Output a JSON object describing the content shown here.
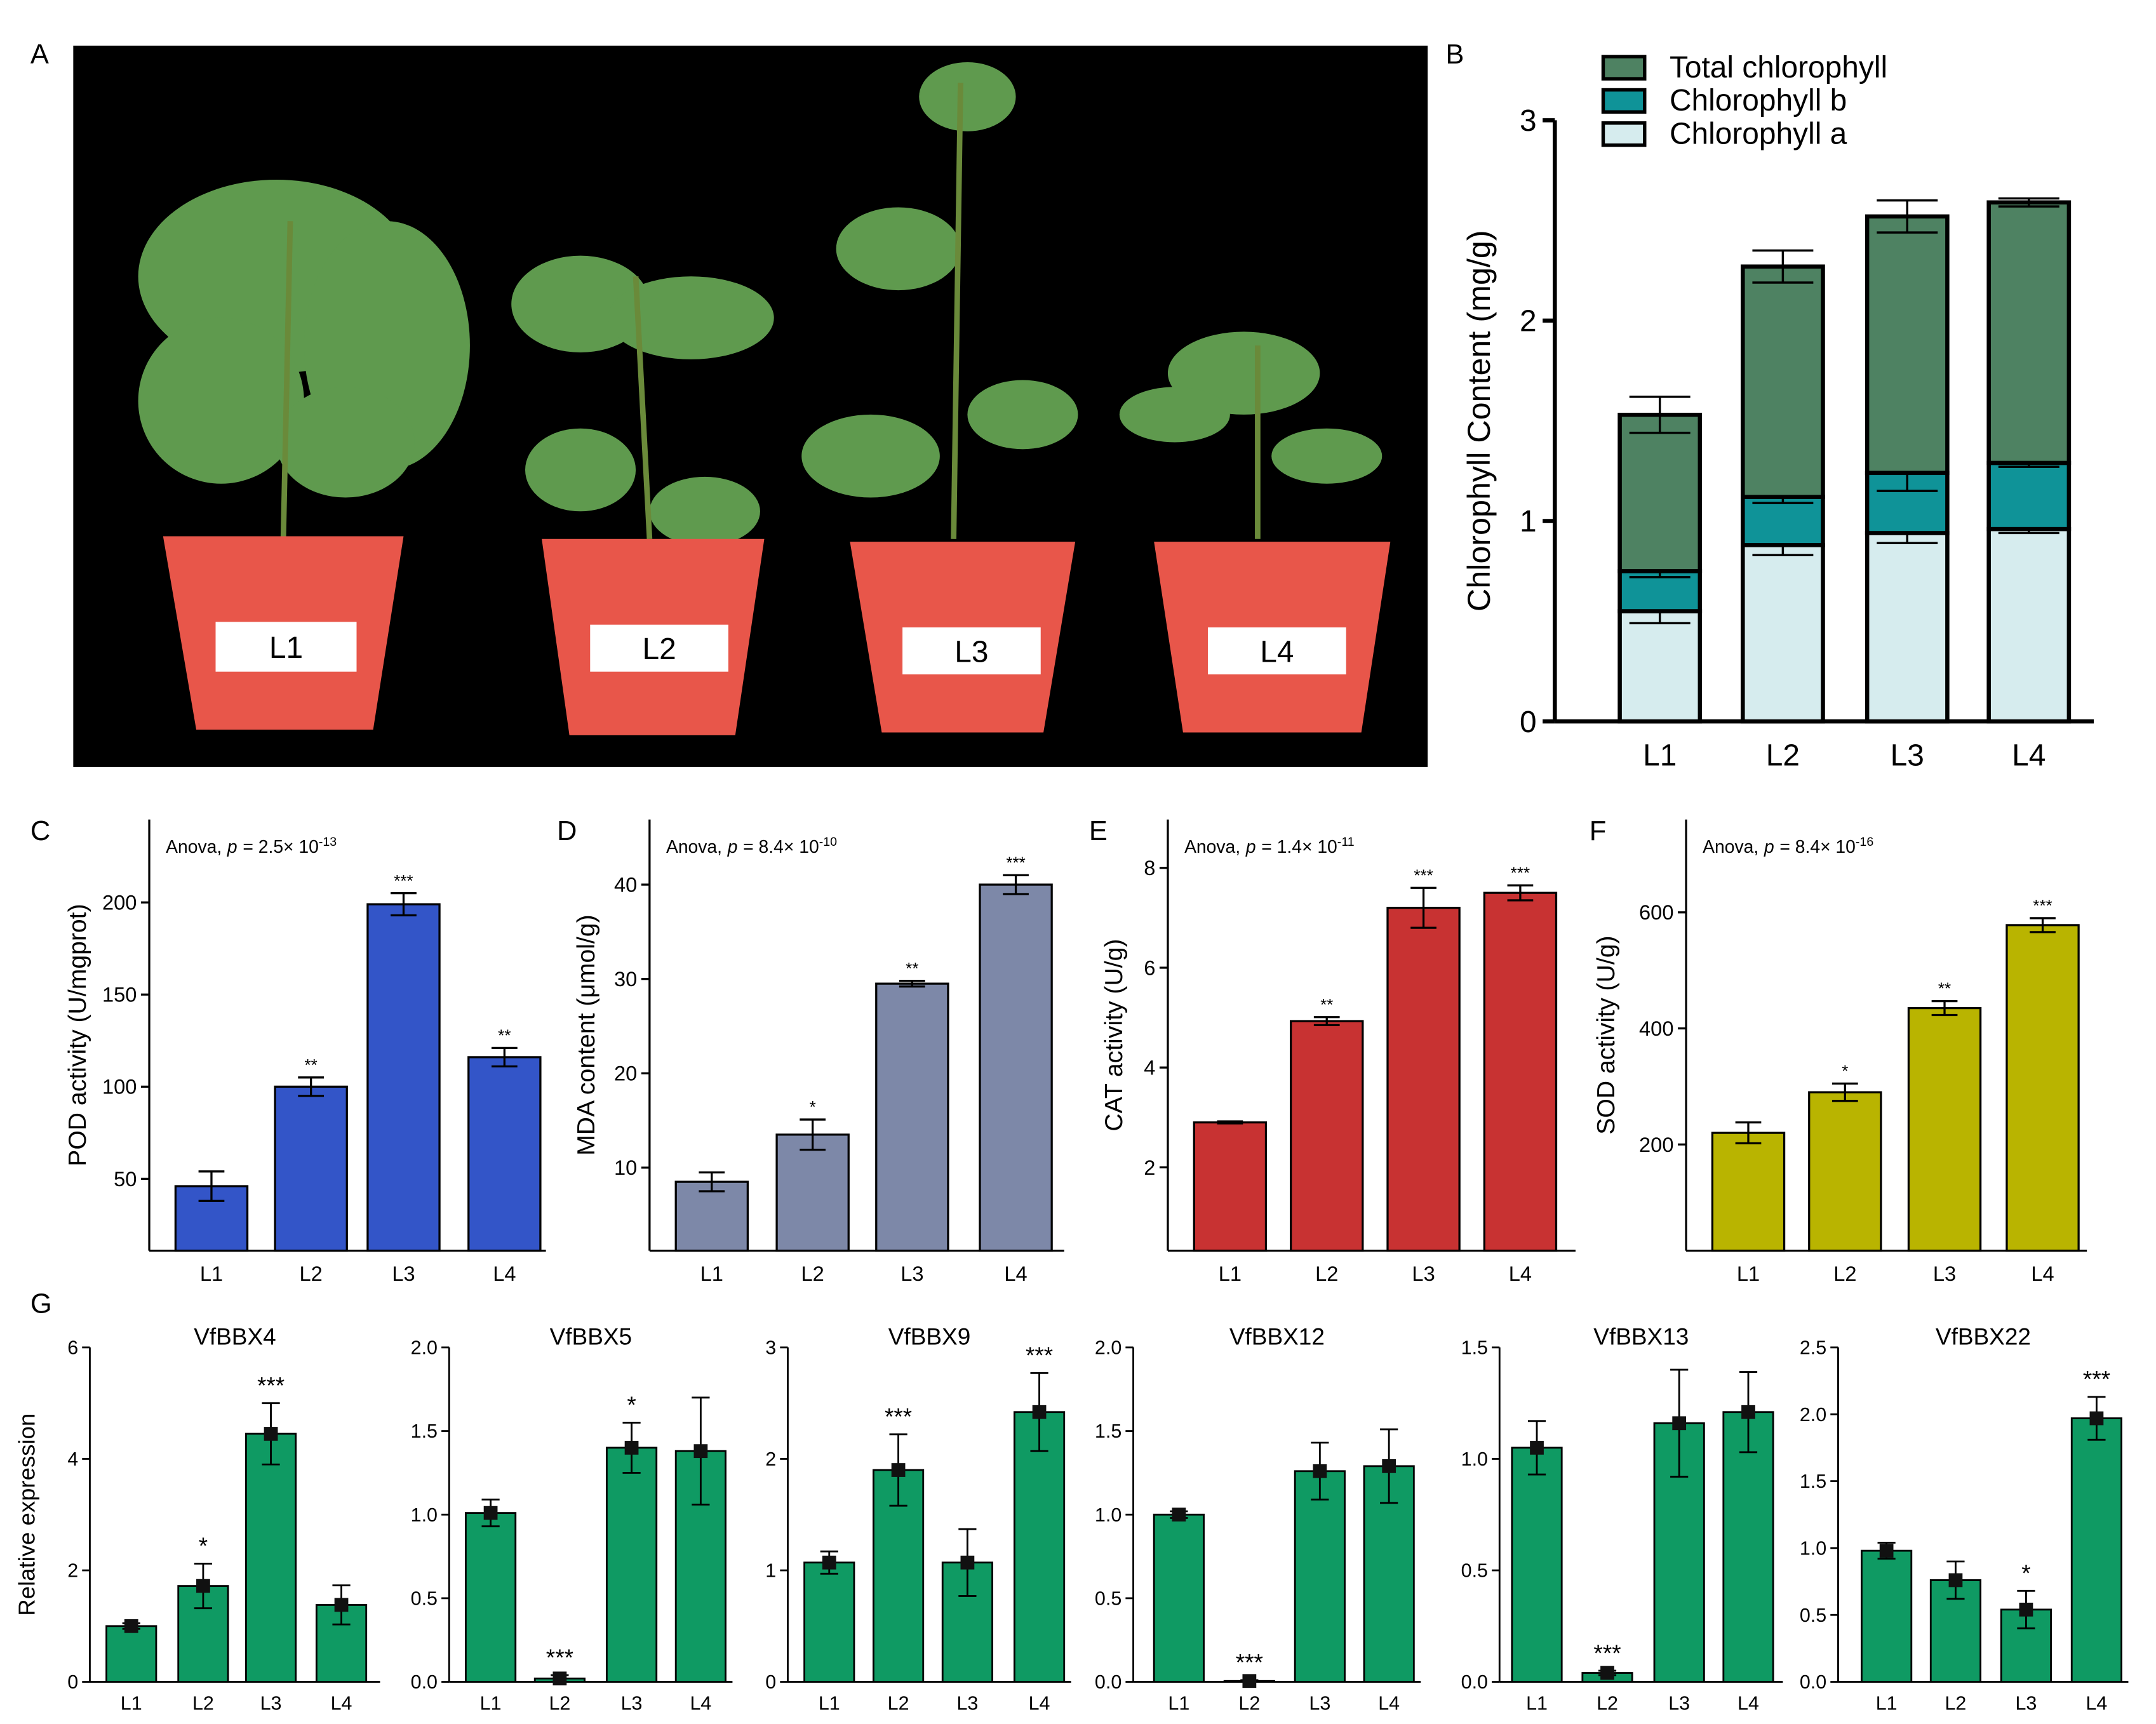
{
  "panel_labels": [
    "A",
    "B",
    "C",
    "D",
    "E",
    "F",
    "G"
  ],
  "photo": {
    "labels": [
      "L1",
      "L2",
      "L3",
      "L4"
    ]
  },
  "chart_data": [
    {
      "type": "stacked_bar",
      "y_label": "Chlorophyll Content (mg/g)",
      "categories": [
        "L1",
        "L2",
        "L3",
        "L4"
      ],
      "series": [
        {
          "name": "Chlorophyll a",
          "color": "#d6ecee",
          "values": [
            0.55,
            0.88,
            0.94,
            0.96
          ],
          "errors": [
            0.06,
            0.05,
            0.05,
            0.02
          ]
        },
        {
          "name": "Chlorophyll b",
          "color": "#0f9398",
          "values": [
            0.2,
            0.24,
            0.3,
            0.33
          ],
          "errors": [
            0.03,
            0.03,
            0.09,
            0.02
          ]
        },
        {
          "name": "Total chlorophyll",
          "color": "#4e8262",
          "values": [
            0.78,
            1.15,
            1.28,
            1.3
          ],
          "errors": [
            0.09,
            0.08,
            0.08,
            0.02
          ]
        }
      ],
      "ylim": [
        0,
        3
      ],
      "yticks": [
        0,
        1,
        2,
        3
      ],
      "legend": "top-left"
    },
    {
      "type": "bar",
      "y_label": "POD activity (U/mgprot)",
      "annotation": {
        "prefix": "Anova,",
        "italic": "p",
        "mid": "= 2.5× 10",
        "sup": "-13"
      },
      "categories": [
        "L1",
        "L2",
        "L3",
        "L4"
      ],
      "values": [
        46,
        100,
        199,
        116
      ],
      "errors": [
        8,
        5,
        6,
        5
      ],
      "significance": [
        null,
        "**",
        "***",
        "**"
      ],
      "color": "#3355c8",
      "ylim": [
        11,
        245
      ],
      "yticks": [
        50,
        100,
        150,
        200
      ]
    },
    {
      "type": "bar",
      "y_label": "MDA content (μmol/g)",
      "annotation": {
        "prefix": "Anova,",
        "italic": "p",
        "mid": "= 8.4× 10",
        "sup": "-10"
      },
      "categories": [
        "L1",
        "L2",
        "L3",
        "L4"
      ],
      "values": [
        8.5,
        13.5,
        29.5,
        40
      ],
      "errors": [
        1,
        1.6,
        0.3,
        1
      ],
      "significance": [
        null,
        "*",
        "**",
        "***"
      ],
      "color": "#7d88a8",
      "ylim": [
        1.2,
        46.9
      ],
      "yticks": [
        10,
        20,
        30,
        40
      ]
    },
    {
      "type": "bar",
      "y_label": "CAT activity (U/g)",
      "annotation": {
        "prefix": "Anova,",
        "italic": "p",
        "mid": "= 1.4× 10",
        "sup": "-11"
      },
      "categories": [
        "L1",
        "L2",
        "L3",
        "L4"
      ],
      "values": [
        2.9,
        4.93,
        7.2,
        7.5
      ],
      "errors": [
        0.02,
        0.08,
        0.4,
        0.15
      ],
      "significance": [
        null,
        "**",
        "***",
        "***"
      ],
      "color": "#c83232",
      "ylim": [
        0.33,
        8.97
      ],
      "yticks": [
        2,
        4,
        6,
        8
      ]
    },
    {
      "type": "bar",
      "y_label": "SOD activity (U/g)",
      "annotation": {
        "prefix": "Anova,",
        "italic": "p",
        "mid": "= 8.4× 10",
        "sup": "-16"
      },
      "categories": [
        "L1",
        "L2",
        "L3",
        "L4"
      ],
      "values": [
        220,
        290,
        435,
        578
      ],
      "errors": [
        18,
        15,
        12,
        12
      ],
      "significance": [
        null,
        "*",
        "**",
        "***"
      ],
      "color": "#b9b400",
      "ylim": [
        17,
        760
      ],
      "yticks": [
        200,
        400,
        600
      ]
    },
    {
      "type": "bar",
      "points": true,
      "title": "VfBBX4",
      "y_label": "Relative expression",
      "categories": [
        "L1",
        "L2",
        "L3",
        "L4"
      ],
      "values": [
        1.0,
        1.72,
        4.45,
        1.38
      ],
      "errors": [
        0.05,
        0.4,
        0.55,
        0.35
      ],
      "significance": [
        null,
        "*",
        "***",
        null
      ],
      "color": "#0f9a63",
      "ylim": [
        0,
        6
      ],
      "yticks": [
        0,
        2,
        4,
        6
      ]
    },
    {
      "type": "bar",
      "points": true,
      "title": "VfBBX5",
      "categories": [
        "L1",
        "L2",
        "L3",
        "L4"
      ],
      "values": [
        1.01,
        0.02,
        1.4,
        1.38
      ],
      "errors": [
        0.08,
        0.02,
        0.15,
        0.32
      ],
      "significance": [
        null,
        "***",
        "*",
        null
      ],
      "color": "#0f9a63",
      "ylim": [
        0,
        2
      ],
      "yticks": [
        {
          "value": 0,
          "label": "0.0"
        },
        0.5,
        {
          "value": 1,
          "label": "1.0"
        },
        1.5,
        {
          "value": 2,
          "label": "2.0"
        }
      ]
    },
    {
      "type": "bar",
      "points": true,
      "title": "VfBBX9",
      "categories": [
        "L1",
        "L2",
        "L3",
        "L4"
      ],
      "values": [
        1.07,
        1.9,
        1.07,
        2.42
      ],
      "errors": [
        0.1,
        0.32,
        0.3,
        0.35
      ],
      "significance": [
        null,
        "***",
        null,
        "***"
      ],
      "color": "#0f9a63",
      "ylim": [
        0,
        3
      ],
      "yticks": [
        0,
        1,
        2,
        3
      ]
    },
    {
      "type": "bar",
      "points": true,
      "title": "VfBBX12",
      "categories": [
        "L1",
        "L2",
        "L3",
        "L4"
      ],
      "values": [
        1.0,
        0.005,
        1.26,
        1.29
      ],
      "errors": [
        0.02,
        0.005,
        0.17,
        0.22
      ],
      "significance": [
        null,
        "***",
        null,
        null
      ],
      "color": "#0f9a63",
      "ylim": [
        0,
        2
      ],
      "yticks": [
        {
          "value": 0,
          "label": "0.0"
        },
        0.5,
        {
          "value": 1,
          "label": "1.0"
        },
        1.5,
        {
          "value": 2,
          "label": "2.0"
        }
      ]
    },
    {
      "type": "bar",
      "points": true,
      "title": "VfBBX13",
      "categories": [
        "L1",
        "L2",
        "L3",
        "L4"
      ],
      "values": [
        1.05,
        0.04,
        1.16,
        1.21
      ],
      "errors": [
        0.12,
        0.01,
        0.24,
        0.18
      ],
      "significance": [
        null,
        "***",
        null,
        null
      ],
      "color": "#0f9a63",
      "ylim": [
        0,
        1.5
      ],
      "yticks": [
        {
          "value": 0,
          "label": "0.0"
        },
        0.5,
        {
          "value": 1,
          "label": "1.0"
        },
        1.5
      ]
    },
    {
      "type": "bar",
      "points": true,
      "title": "VfBBX22",
      "categories": [
        "L1",
        "L2",
        "L3",
        "L4"
      ],
      "values": [
        0.98,
        0.76,
        0.54,
        1.97
      ],
      "errors": [
        0.06,
        0.14,
        0.14,
        0.16
      ],
      "significance": [
        null,
        null,
        "*",
        "***"
      ],
      "color": "#0f9a63",
      "ylim": [
        0,
        2.5
      ],
      "yticks": [
        {
          "value": 0,
          "label": "0.0"
        },
        0.5,
        {
          "value": 1,
          "label": "1.0"
        },
        1.5,
        {
          "value": 2,
          "label": "2.0"
        },
        2.5
      ]
    }
  ]
}
